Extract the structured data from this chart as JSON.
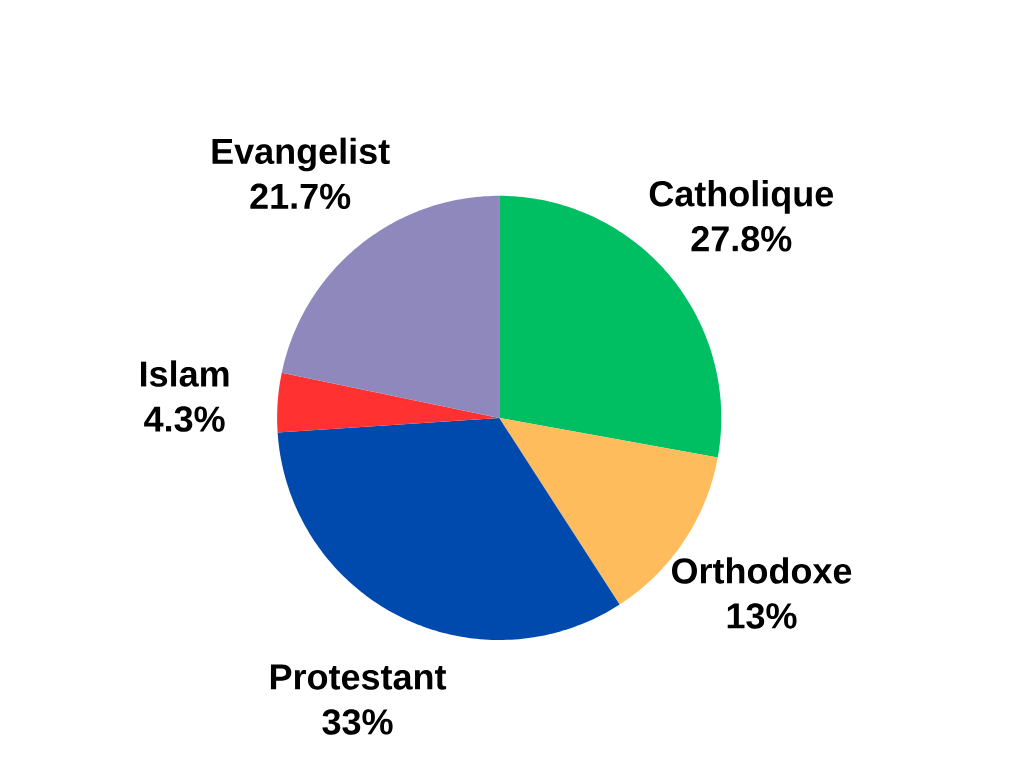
{
  "chart_data": {
    "type": "pie",
    "categories": [
      "Catholique",
      "Orthodoxe",
      "Protestant",
      "Islam",
      "Evangelist"
    ],
    "values": [
      27.8,
      13,
      33,
      4.3,
      21.7
    ],
    "value_labels": [
      "27.8%",
      "13%",
      "33%",
      "4.3%",
      "21.7%"
    ],
    "colors": [
      "#00bf63",
      "#ffbc5c",
      "#004aad",
      "#ff3131",
      "#8e88bd"
    ]
  }
}
